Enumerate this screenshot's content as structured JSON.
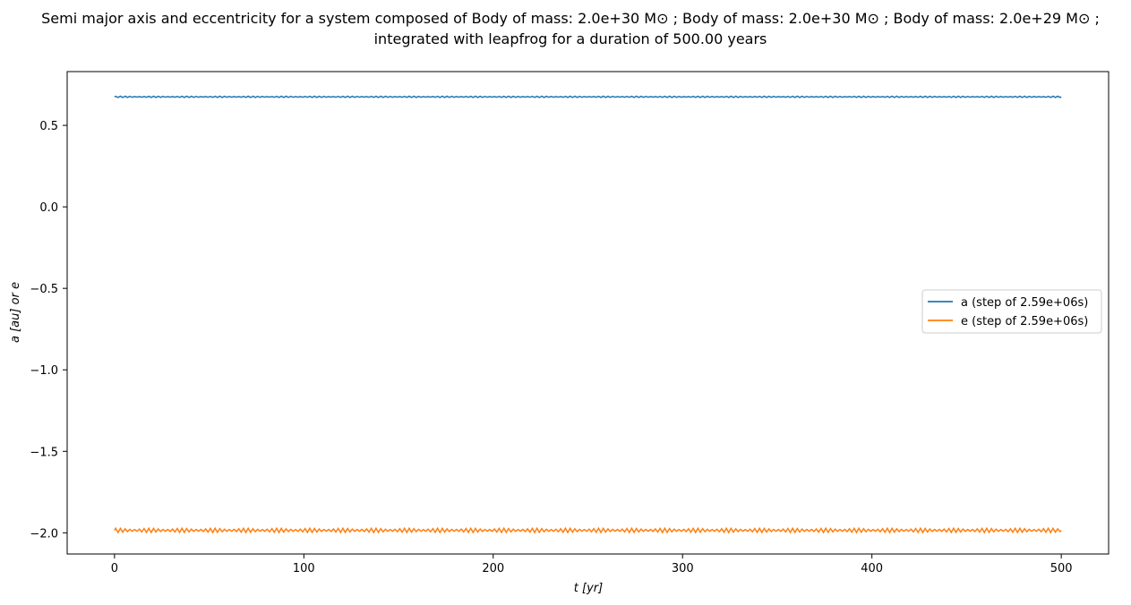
{
  "chart_data": {
    "type": "line",
    "title": [
      "Semi major axis and eccentricity for a system composed of Body of mass: 2.0e+30 M⊙ ; Body of mass: 2.0e+30 M⊙ ; Body of mass: 2.0e+29 M⊙ ;",
      "integrated with leapfrog for a duration of 500.00 years"
    ],
    "xlabel": "t [yr]",
    "ylabel": "a [au] or e",
    "xlim": [
      -25,
      525
    ],
    "ylim": [
      -2.13,
      0.83
    ],
    "xticks": [
      0,
      100,
      200,
      300,
      400,
      500
    ],
    "xtick_labels": [
      "0",
      "100",
      "200",
      "300",
      "400",
      "500"
    ],
    "yticks": [
      0.5,
      0.0,
      -0.5,
      -1.0,
      -1.5,
      -2.0
    ],
    "ytick_labels": [
      "0.5",
      "0.0",
      "−0.5",
      "−1.0",
      "−1.5",
      "−2.0"
    ],
    "grid": false,
    "legend_position": "center-right",
    "series": [
      {
        "name": "a (step of 2.59e+06s)",
        "color": "#1f77b4",
        "x_range": [
          0,
          500
        ],
        "mean": 0.675,
        "oscillation_amplitude": 0.004,
        "oscillation_period_yr": 2.5
      },
      {
        "name": "e (step of 2.59e+06s)",
        "color": "#ff7f0e",
        "x_range": [
          0,
          500
        ],
        "mean": -1.985,
        "oscillation_amplitude": 0.013,
        "oscillation_period_yr": 2.5
      }
    ]
  }
}
